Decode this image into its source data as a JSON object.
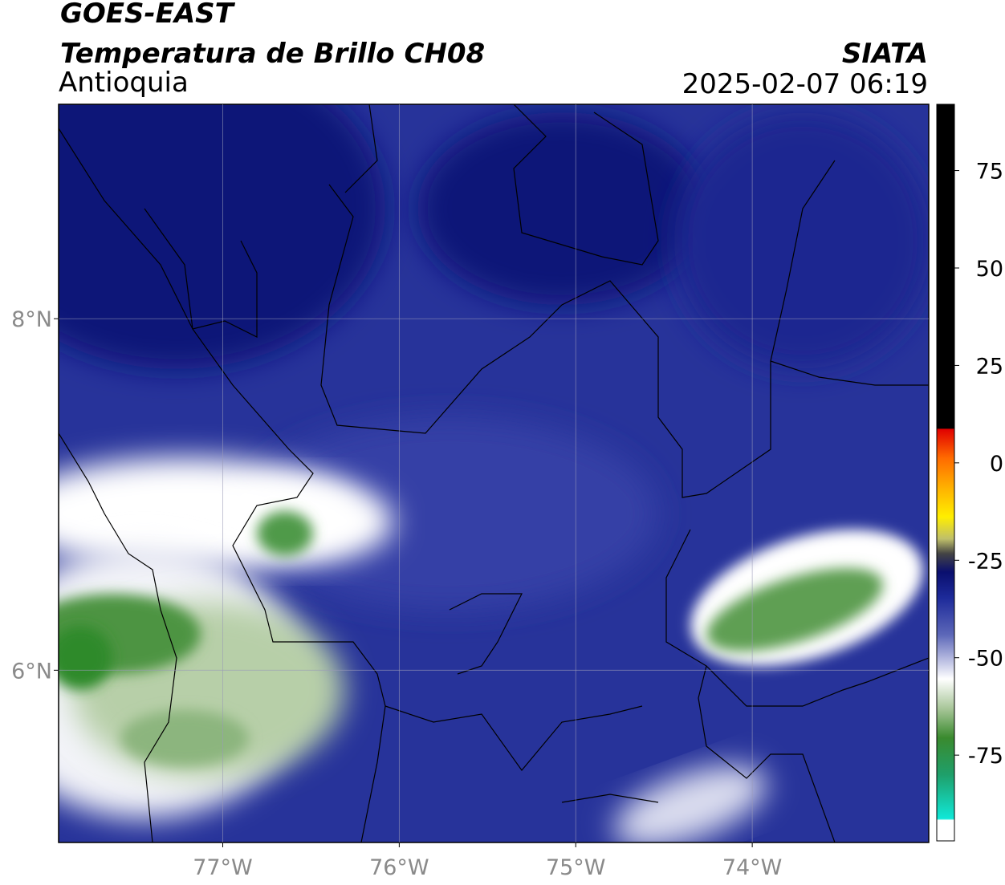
{
  "chart_data": {
    "type": "map",
    "title": "GOES-EAST",
    "subtitle": "Temperatura de Brillo CH08",
    "region": "Antioquia",
    "source": "SIATA",
    "timestamp": "2025-02-07 06:19",
    "xlim": [
      -77.93,
      -73.0
    ],
    "ylim": [
      5.02,
      9.22
    ],
    "xticks": [
      {
        "value": -77,
        "label": "77°W"
      },
      {
        "value": -76,
        "label": "76°W"
      },
      {
        "value": -75,
        "label": "75°W"
      },
      {
        "value": -74,
        "label": "74°W"
      }
    ],
    "yticks": [
      {
        "value": 6,
        "label": "6°N"
      },
      {
        "value": 8,
        "label": "8°N"
      }
    ],
    "grid": true,
    "colorbar": {
      "clim": [
        -97,
        92
      ],
      "ticks": [
        -75,
        -50,
        -25,
        0,
        25,
        50,
        75
      ]
    }
  }
}
